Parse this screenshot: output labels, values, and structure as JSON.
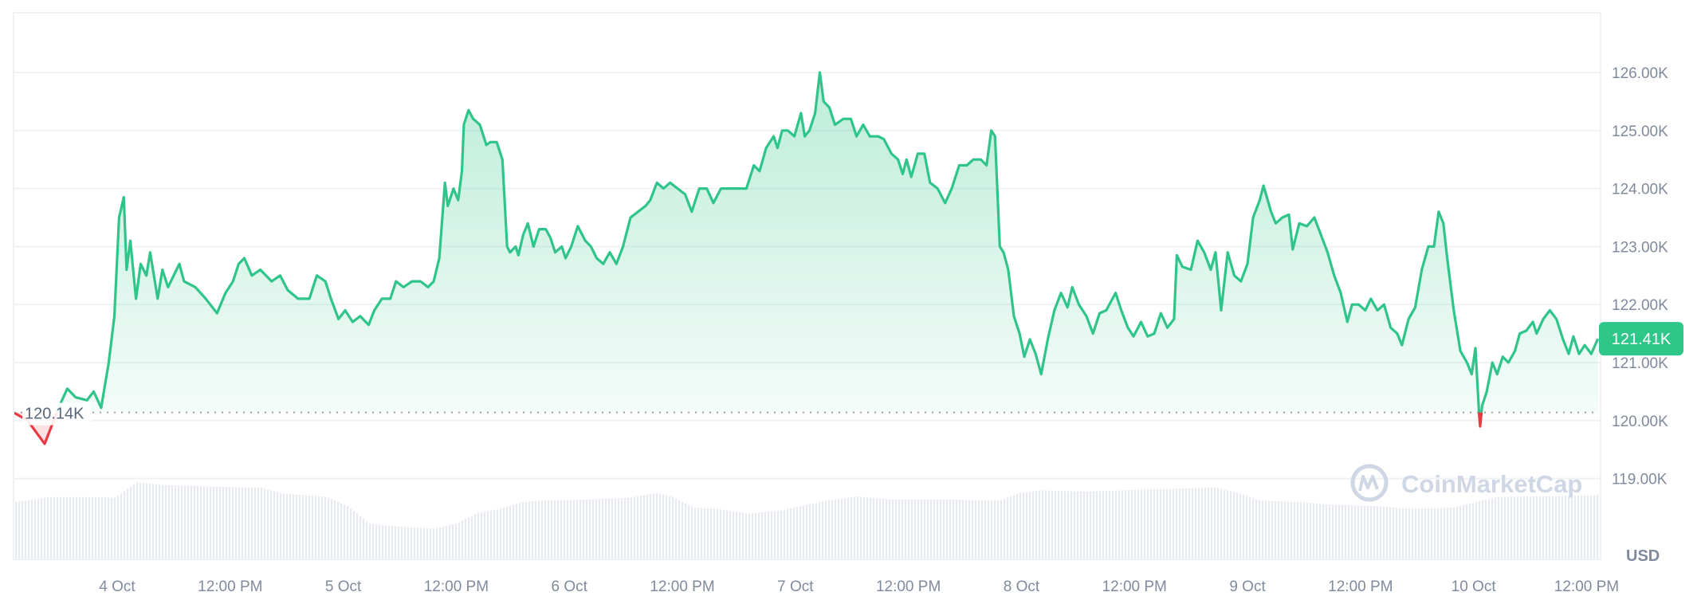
{
  "chart_data": {
    "type": "area",
    "title": "",
    "xlabel": "",
    "ylabel": "",
    "unit_label": "USD",
    "ylim": [
      118.2,
      127.0
    ],
    "y_ticks": [
      "119.00K",
      "120.00K",
      "121.00K",
      "122.00K",
      "123.00K",
      "124.00K",
      "125.00K",
      "126.00K"
    ],
    "y_tick_values": [
      119,
      120,
      121,
      122,
      123,
      124,
      125,
      126
    ],
    "x_ticks": [
      {
        "t": "Oct 4 00:00",
        "label": "4 Oct"
      },
      {
        "t": "Oct 4 12:00",
        "label": "12:00 PM"
      },
      {
        "t": "Oct 5 00:00",
        "label": "5 Oct"
      },
      {
        "t": "Oct 5 12:00",
        "label": "12:00 PM"
      },
      {
        "t": "Oct 6 00:00",
        "label": "6 Oct"
      },
      {
        "t": "Oct 6 12:00",
        "label": "12:00 PM"
      },
      {
        "t": "Oct 7 00:00",
        "label": "7 Oct"
      },
      {
        "t": "Oct 7 12:00",
        "label": "12:00 PM"
      },
      {
        "t": "Oct 8 00:00",
        "label": "8 Oct"
      },
      {
        "t": "Oct 8 12:00",
        "label": "12:00 PM"
      },
      {
        "t": "Oct 9 00:00",
        "label": "9 Oct"
      },
      {
        "t": "Oct 9 12:00",
        "label": "12:00 PM"
      },
      {
        "t": "Oct 10 00:00",
        "label": "10 Oct"
      },
      {
        "t": "Oct 10 12:00",
        "label": "12:00 PM"
      }
    ],
    "xlim": [
      "Oct 3 12:55",
      "Oct 10 13:30"
    ],
    "grid": true,
    "open_price": 120.14,
    "open_label": "120.14K",
    "current_price": 121.41,
    "current_label": "121.41K",
    "colors": {
      "up": "#2fc58a",
      "down": "#ea3943",
      "badge": "#2fc68a",
      "grid": "#eff2f5",
      "volume": "#e6e9ee",
      "watermark": "#cfd6e4"
    },
    "watermark": "CoinMarketCap",
    "series": [
      [
        "Oct 3 13:00",
        120.14
      ],
      [
        "Oct 3 14:30",
        120.0
      ],
      [
        "Oct 3 16:18",
        119.6
      ],
      [
        "Oct 3 18:00",
        120.3
      ],
      [
        "Oct 3 18:42",
        120.55
      ],
      [
        "Oct 3 19:36",
        120.4
      ],
      [
        "Oct 3 20:48",
        120.35
      ],
      [
        "Oct 3 21:30",
        120.5
      ],
      [
        "Oct 3 22:18",
        120.22
      ],
      [
        "Oct 3 23:06",
        121.0
      ],
      [
        "Oct 3 23:42",
        121.8
      ],
      [
        "Oct 4 00:12",
        123.5
      ],
      [
        "Oct 4 00:42",
        123.85
      ],
      [
        "Oct 4 01:00",
        122.6
      ],
      [
        "Oct 4 01:24",
        123.1
      ],
      [
        "Oct 4 02:00",
        122.1
      ],
      [
        "Oct 4 02:30",
        122.7
      ],
      [
        "Oct 4 03:06",
        122.5
      ],
      [
        "Oct 4 03:30",
        122.9
      ],
      [
        "Oct 4 04:18",
        122.1
      ],
      [
        "Oct 4 04:48",
        122.6
      ],
      [
        "Oct 4 05:24",
        122.3
      ],
      [
        "Oct 4 06:36",
        122.7
      ],
      [
        "Oct 4 07:06",
        122.4
      ],
      [
        "Oct 4 08:18",
        122.3
      ],
      [
        "Oct 4 09:24",
        122.1
      ],
      [
        "Oct 4 10:36",
        121.85
      ],
      [
        "Oct 4 11:30",
        122.2
      ],
      [
        "Oct 4 12:18",
        122.4
      ],
      [
        "Oct 4 12:54",
        122.7
      ],
      [
        "Oct 4 13:30",
        122.8
      ],
      [
        "Oct 4 14:18",
        122.5
      ],
      [
        "Oct 4 15:12",
        122.6
      ],
      [
        "Oct 4 16:24",
        122.4
      ],
      [
        "Oct 4 17:18",
        122.5
      ],
      [
        "Oct 4 18:06",
        122.25
      ],
      [
        "Oct 4 19:12",
        122.1
      ],
      [
        "Oct 4 20:24",
        122.1
      ],
      [
        "Oct 4 21:12",
        122.5
      ],
      [
        "Oct 4 22:06",
        122.4
      ],
      [
        "Oct 4 22:42",
        122.1
      ],
      [
        "Oct 4 23:30",
        121.75
      ],
      [
        "Oct 5 00:12",
        121.9
      ],
      [
        "Oct 5 01:00",
        121.7
      ],
      [
        "Oct 5 01:48",
        121.8
      ],
      [
        "Oct 5 02:42",
        121.65
      ],
      [
        "Oct 5 03:18",
        121.9
      ],
      [
        "Oct 5 04:06",
        122.1
      ],
      [
        "Oct 5 05:00",
        122.1
      ],
      [
        "Oct 5 05:36",
        122.4
      ],
      [
        "Oct 5 06:24",
        122.3
      ],
      [
        "Oct 5 07:18",
        122.4
      ],
      [
        "Oct 5 08:12",
        122.4
      ],
      [
        "Oct 5 09:00",
        122.3
      ],
      [
        "Oct 5 09:36",
        122.4
      ],
      [
        "Oct 5 10:12",
        122.8
      ],
      [
        "Oct 5 10:48",
        124.1
      ],
      [
        "Oct 5 11:06",
        123.7
      ],
      [
        "Oct 5 11:42",
        124.0
      ],
      [
        "Oct 5 12:12",
        123.8
      ],
      [
        "Oct 5 12:36",
        124.3
      ],
      [
        "Oct 5 12:48",
        125.1
      ],
      [
        "Oct 5 13:18",
        125.35
      ],
      [
        "Oct 5 13:48",
        125.2
      ],
      [
        "Oct 5 14:30",
        125.1
      ],
      [
        "Oct 5 15:12",
        124.75
      ],
      [
        "Oct 5 15:36",
        124.8
      ],
      [
        "Oct 5 16:18",
        124.8
      ],
      [
        "Oct 5 16:54",
        124.5
      ],
      [
        "Oct 5 17:24",
        123.0
      ],
      [
        "Oct 5 17:42",
        122.9
      ],
      [
        "Oct 5 18:18",
        123.0
      ],
      [
        "Oct 5 18:36",
        122.85
      ],
      [
        "Oct 5 19:06",
        123.2
      ],
      [
        "Oct 5 19:36",
        123.4
      ],
      [
        "Oct 5 20:12",
        123.0
      ],
      [
        "Oct 5 20:48",
        123.3
      ],
      [
        "Oct 5 21:30",
        123.3
      ],
      [
        "Oct 5 22:00",
        123.15
      ],
      [
        "Oct 5 22:30",
        122.9
      ],
      [
        "Oct 5 23:12",
        123.0
      ],
      [
        "Oct 5 23:36",
        122.8
      ],
      [
        "Oct 6 00:12",
        123.0
      ],
      [
        "Oct 6 00:54",
        123.35
      ],
      [
        "Oct 6 01:42",
        123.1
      ],
      [
        "Oct 6 02:18",
        123.0
      ],
      [
        "Oct 6 02:54",
        122.8
      ],
      [
        "Oct 6 03:36",
        122.7
      ],
      [
        "Oct 6 04:18",
        122.9
      ],
      [
        "Oct 6 05:00",
        122.7
      ],
      [
        "Oct 6 05:42",
        123.0
      ],
      [
        "Oct 6 06:30",
        123.5
      ],
      [
        "Oct 6 07:18",
        123.6
      ],
      [
        "Oct 6 08:06",
        123.7
      ],
      [
        "Oct 6 08:36",
        123.8
      ],
      [
        "Oct 6 09:18",
        124.1
      ],
      [
        "Oct 6 10:00",
        124.0
      ],
      [
        "Oct 6 10:42",
        124.1
      ],
      [
        "Oct 6 11:30",
        124.0
      ],
      [
        "Oct 6 12:18",
        123.9
      ],
      [
        "Oct 6 13:00",
        123.6
      ],
      [
        "Oct 6 13:48",
        124.0
      ],
      [
        "Oct 6 14:36",
        124.0
      ],
      [
        "Oct 6 15:18",
        123.75
      ],
      [
        "Oct 6 16:06",
        124.0
      ],
      [
        "Oct 6 16:54",
        124.0
      ],
      [
        "Oct 6 17:54",
        124.0
      ],
      [
        "Oct 6 18:48",
        124.0
      ],
      [
        "Oct 6 19:36",
        124.4
      ],
      [
        "Oct 6 20:12",
        124.3
      ],
      [
        "Oct 6 20:54",
        124.7
      ],
      [
        "Oct 6 21:42",
        124.9
      ],
      [
        "Oct 6 22:06",
        124.7
      ],
      [
        "Oct 6 22:36",
        125.0
      ],
      [
        "Oct 6 23:12",
        125.0
      ],
      [
        "Oct 6 23:54",
        124.9
      ],
      [
        "Oct 7 00:36",
        125.3
      ],
      [
        "Oct 7 01:00",
        124.9
      ],
      [
        "Oct 7 01:30",
        125.0
      ],
      [
        "Oct 7 02:06",
        125.3
      ],
      [
        "Oct 7 02:36",
        126.0
      ],
      [
        "Oct 7 03:00",
        125.5
      ],
      [
        "Oct 7 03:36",
        125.4
      ],
      [
        "Oct 7 04:12",
        125.1
      ],
      [
        "Oct 7 05:06",
        125.2
      ],
      [
        "Oct 7 05:54",
        125.2
      ],
      [
        "Oct 7 06:30",
        124.9
      ],
      [
        "Oct 7 07:12",
        125.1
      ],
      [
        "Oct 7 07:54",
        124.9
      ],
      [
        "Oct 7 08:48",
        124.9
      ],
      [
        "Oct 7 09:24",
        124.85
      ],
      [
        "Oct 7 10:12",
        124.6
      ],
      [
        "Oct 7 10:54",
        124.5
      ],
      [
        "Oct 7 11:24",
        124.25
      ],
      [
        "Oct 7 11:48",
        124.5
      ],
      [
        "Oct 7 12:18",
        124.2
      ],
      [
        "Oct 7 13:00",
        124.6
      ],
      [
        "Oct 7 13:42",
        124.6
      ],
      [
        "Oct 7 14:18",
        124.1
      ],
      [
        "Oct 7 15:06",
        124.0
      ],
      [
        "Oct 7 15:54",
        123.75
      ],
      [
        "Oct 7 16:36",
        124.0
      ],
      [
        "Oct 7 17:24",
        124.4
      ],
      [
        "Oct 7 18:12",
        124.4
      ],
      [
        "Oct 7 18:54",
        124.5
      ],
      [
        "Oct 7 19:42",
        124.5
      ],
      [
        "Oct 7 20:18",
        124.4
      ],
      [
        "Oct 7 20:48",
        125.0
      ],
      [
        "Oct 7 21:12",
        124.9
      ],
      [
        "Oct 7 21:42",
        123.0
      ],
      [
        "Oct 7 22:06",
        122.9
      ],
      [
        "Oct 7 22:36",
        122.6
      ],
      [
        "Oct 7 23:12",
        121.8
      ],
      [
        "Oct 7 23:48",
        121.5
      ],
      [
        "Oct 8 00:18",
        121.1
      ],
      [
        "Oct 8 00:54",
        121.4
      ],
      [
        "Oct 8 01:30",
        121.15
      ],
      [
        "Oct 8 02:06",
        120.8
      ],
      [
        "Oct 8 02:48",
        121.4
      ],
      [
        "Oct 8 03:30",
        121.9
      ],
      [
        "Oct 8 04:12",
        122.2
      ],
      [
        "Oct 8 04:54",
        121.95
      ],
      [
        "Oct 8 05:24",
        122.3
      ],
      [
        "Oct 8 06:06",
        122.0
      ],
      [
        "Oct 8 06:54",
        121.8
      ],
      [
        "Oct 8 07:36",
        121.5
      ],
      [
        "Oct 8 08:18",
        121.85
      ],
      [
        "Oct 8 09:00",
        121.9
      ],
      [
        "Oct 8 10:00",
        122.2
      ],
      [
        "Oct 8 10:36",
        121.9
      ],
      [
        "Oct 8 11:18",
        121.6
      ],
      [
        "Oct 8 11:54",
        121.45
      ],
      [
        "Oct 8 12:42",
        121.7
      ],
      [
        "Oct 8 13:24",
        121.45
      ],
      [
        "Oct 8 14:06",
        121.5
      ],
      [
        "Oct 8 14:48",
        121.85
      ],
      [
        "Oct 8 15:30",
        121.6
      ],
      [
        "Oct 8 16:12",
        121.75
      ],
      [
        "Oct 8 16:30",
        122.85
      ],
      [
        "Oct 8 17:06",
        122.65
      ],
      [
        "Oct 8 18:00",
        122.6
      ],
      [
        "Oct 8 18:42",
        123.1
      ],
      [
        "Oct 8 19:24",
        122.9
      ],
      [
        "Oct 8 20:06",
        122.6
      ],
      [
        "Oct 8 20:36",
        122.9
      ],
      [
        "Oct 8 21:12",
        121.9
      ],
      [
        "Oct 8 21:54",
        122.9
      ],
      [
        "Oct 8 22:36",
        122.5
      ],
      [
        "Oct 8 23:18",
        122.4
      ],
      [
        "Oct 9 00:00",
        122.7
      ],
      [
        "Oct 9 00:36",
        123.5
      ],
      [
        "Oct 9 01:18",
        123.8
      ],
      [
        "Oct 9 01:42",
        124.05
      ],
      [
        "Oct 9 02:30",
        123.6
      ],
      [
        "Oct 9 03:00",
        123.4
      ],
      [
        "Oct 9 03:42",
        123.5
      ],
      [
        "Oct 9 04:24",
        123.55
      ],
      [
        "Oct 9 04:48",
        122.95
      ],
      [
        "Oct 9 05:30",
        123.4
      ],
      [
        "Oct 9 06:18",
        123.35
      ],
      [
        "Oct 9 07:06",
        123.5
      ],
      [
        "Oct 9 07:48",
        123.2
      ],
      [
        "Oct 9 08:30",
        122.9
      ],
      [
        "Oct 9 09:12",
        122.5
      ],
      [
        "Oct 9 09:54",
        122.2
      ],
      [
        "Oct 9 10:36",
        121.7
      ],
      [
        "Oct 9 11:06",
        122.0
      ],
      [
        "Oct 9 11:48",
        122.0
      ],
      [
        "Oct 9 12:30",
        121.9
      ],
      [
        "Oct 9 13:06",
        122.1
      ],
      [
        "Oct 9 13:48",
        121.9
      ],
      [
        "Oct 9 14:30",
        122.0
      ],
      [
        "Oct 9 15:12",
        121.6
      ],
      [
        "Oct 9 15:54",
        121.5
      ],
      [
        "Oct 9 16:24",
        121.3
      ],
      [
        "Oct 9 17:06",
        121.75
      ],
      [
        "Oct 9 17:48",
        121.95
      ],
      [
        "Oct 9 18:30",
        122.6
      ],
      [
        "Oct 9 19:12",
        123.0
      ],
      [
        "Oct 9 19:48",
        123.0
      ],
      [
        "Oct 9 20:18",
        123.6
      ],
      [
        "Oct 9 20:48",
        123.4
      ],
      [
        "Oct 9 21:12",
        122.8
      ],
      [
        "Oct 9 21:54",
        121.9
      ],
      [
        "Oct 9 22:36",
        121.2
      ],
      [
        "Oct 9 23:18",
        121.0
      ],
      [
        "Oct 9 23:48",
        120.8
      ],
      [
        "Oct 10 00:12",
        121.25
      ],
      [
        "Oct 10 00:36",
        120.1
      ],
      [
        "Oct 10 00:42",
        119.9
      ],
      [
        "Oct 10 00:54",
        120.25
      ],
      [
        "Oct 10 01:24",
        120.5
      ],
      [
        "Oct 10 02:00",
        121.0
      ],
      [
        "Oct 10 02:30",
        120.8
      ],
      [
        "Oct 10 03:06",
        121.1
      ],
      [
        "Oct 10 03:42",
        121.0
      ],
      [
        "Oct 10 04:24",
        121.2
      ],
      [
        "Oct 10 04:54",
        121.5
      ],
      [
        "Oct 10 05:36",
        121.55
      ],
      [
        "Oct 10 06:18",
        121.7
      ],
      [
        "Oct 10 06:42",
        121.5
      ],
      [
        "Oct 10 07:24",
        121.75
      ],
      [
        "Oct 10 08:06",
        121.9
      ],
      [
        "Oct 10 08:48",
        121.75
      ],
      [
        "Oct 10 09:30",
        121.4
      ],
      [
        "Oct 10 10:06",
        121.15
      ],
      [
        "Oct 10 10:36",
        121.45
      ],
      [
        "Oct 10 11:12",
        121.15
      ],
      [
        "Oct 10 11:48",
        121.3
      ],
      [
        "Oct 10 12:30",
        121.15
      ],
      [
        "Oct 10 13:12",
        121.41
      ]
    ],
    "volume_relative": [
      [
        "Oct 3 13:00",
        215
      ],
      [
        "Oct 3 16:42",
        235
      ],
      [
        "Oct 3 20:48",
        235
      ],
      [
        "Oct 3 23:42",
        232
      ],
      [
        "Oct 4 02:00",
        290
      ],
      [
        "Oct 4 04:48",
        280
      ],
      [
        "Oct 4 10:36",
        273
      ],
      [
        "Oct 4 15:12",
        270
      ],
      [
        "Oct 4 17:30",
        248
      ],
      [
        "Oct 4 22:06",
        235
      ],
      [
        "Oct 5 00:24",
        200
      ],
      [
        "Oct 5 02:42",
        135
      ],
      [
        "Oct 5 05:00",
        125
      ],
      [
        "Oct 5 09:36",
        115
      ],
      [
        "Oct 5 11:54",
        135
      ],
      [
        "Oct 5 14:12",
        175
      ],
      [
        "Oct 5 16:30",
        190
      ],
      [
        "Oct 5 18:48",
        215
      ],
      [
        "Oct 5 21:06",
        222
      ],
      [
        "Oct 6 01:42",
        225
      ],
      [
        "Oct 6 06:18",
        232
      ],
      [
        "Oct 6 09:12",
        250
      ],
      [
        "Oct 6 10:54",
        235
      ],
      [
        "Oct 6 13:12",
        195
      ],
      [
        "Oct 6 15:36",
        190
      ],
      [
        "Oct 6 19:00",
        172
      ],
      [
        "Oct 6 22:30",
        185
      ],
      [
        "Oct 7 03:06",
        220
      ],
      [
        "Oct 7 06:30",
        237
      ],
      [
        "Oct 7 10:00",
        225
      ],
      [
        "Oct 7 16:54",
        225
      ],
      [
        "Oct 7 21:30",
        220
      ],
      [
        "Oct 7 23:48",
        250
      ],
      [
        "Oct 8 02:06",
        260
      ],
      [
        "Oct 8 06:42",
        255
      ],
      [
        "Oct 8 12:30",
        262
      ],
      [
        "Oct 8 18:12",
        268
      ],
      [
        "Oct 8 20:30",
        270
      ],
      [
        "Oct 8 22:48",
        252
      ],
      [
        "Oct 9 01:06",
        222
      ],
      [
        "Oct 9 05:42",
        215
      ],
      [
        "Oct 9 09:12",
        205
      ],
      [
        "Oct 9 13:48",
        200
      ],
      [
        "Oct 9 17:12",
        190
      ],
      [
        "Oct 9 21:48",
        195
      ],
      [
        "Oct 10 00:06",
        215
      ],
      [
        "Oct 10 02:24",
        235
      ],
      [
        "Oct 10 07:00",
        237
      ],
      [
        "Oct 10 13:12",
        242
      ]
    ]
  }
}
